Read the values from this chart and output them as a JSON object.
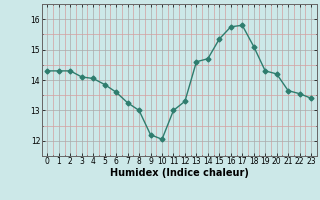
{
  "x": [
    0,
    1,
    2,
    3,
    4,
    5,
    6,
    7,
    8,
    9,
    10,
    11,
    12,
    13,
    14,
    15,
    16,
    17,
    18,
    19,
    20,
    21,
    22,
    23
  ],
  "y": [
    14.3,
    14.3,
    14.3,
    14.1,
    14.05,
    13.85,
    13.6,
    13.25,
    13.0,
    12.2,
    12.05,
    13.0,
    13.3,
    14.6,
    14.7,
    15.35,
    15.75,
    15.8,
    15.1,
    14.3,
    14.2,
    13.65,
    13.55,
    13.4
  ],
  "line_color": "#2e7d6e",
  "marker": "D",
  "markersize": 2.5,
  "linewidth": 1.0,
  "xlabel": "Humidex (Indice chaleur)",
  "xlim": [
    -0.5,
    23.5
  ],
  "ylim": [
    11.7,
    16.3
  ],
  "yticks": [
    12,
    13,
    14,
    15,
    16
  ],
  "xticks": [
    0,
    1,
    2,
    3,
    4,
    5,
    6,
    7,
    8,
    9,
    10,
    11,
    12,
    13,
    14,
    15,
    16,
    17,
    18,
    19,
    20,
    21,
    22,
    23
  ],
  "background_color": "#cce8e8",
  "grid_major_color": "#aaaaaa",
  "grid_minor_color": "#d4a0a0",
  "tick_fontsize": 5.5,
  "xlabel_fontsize": 7
}
